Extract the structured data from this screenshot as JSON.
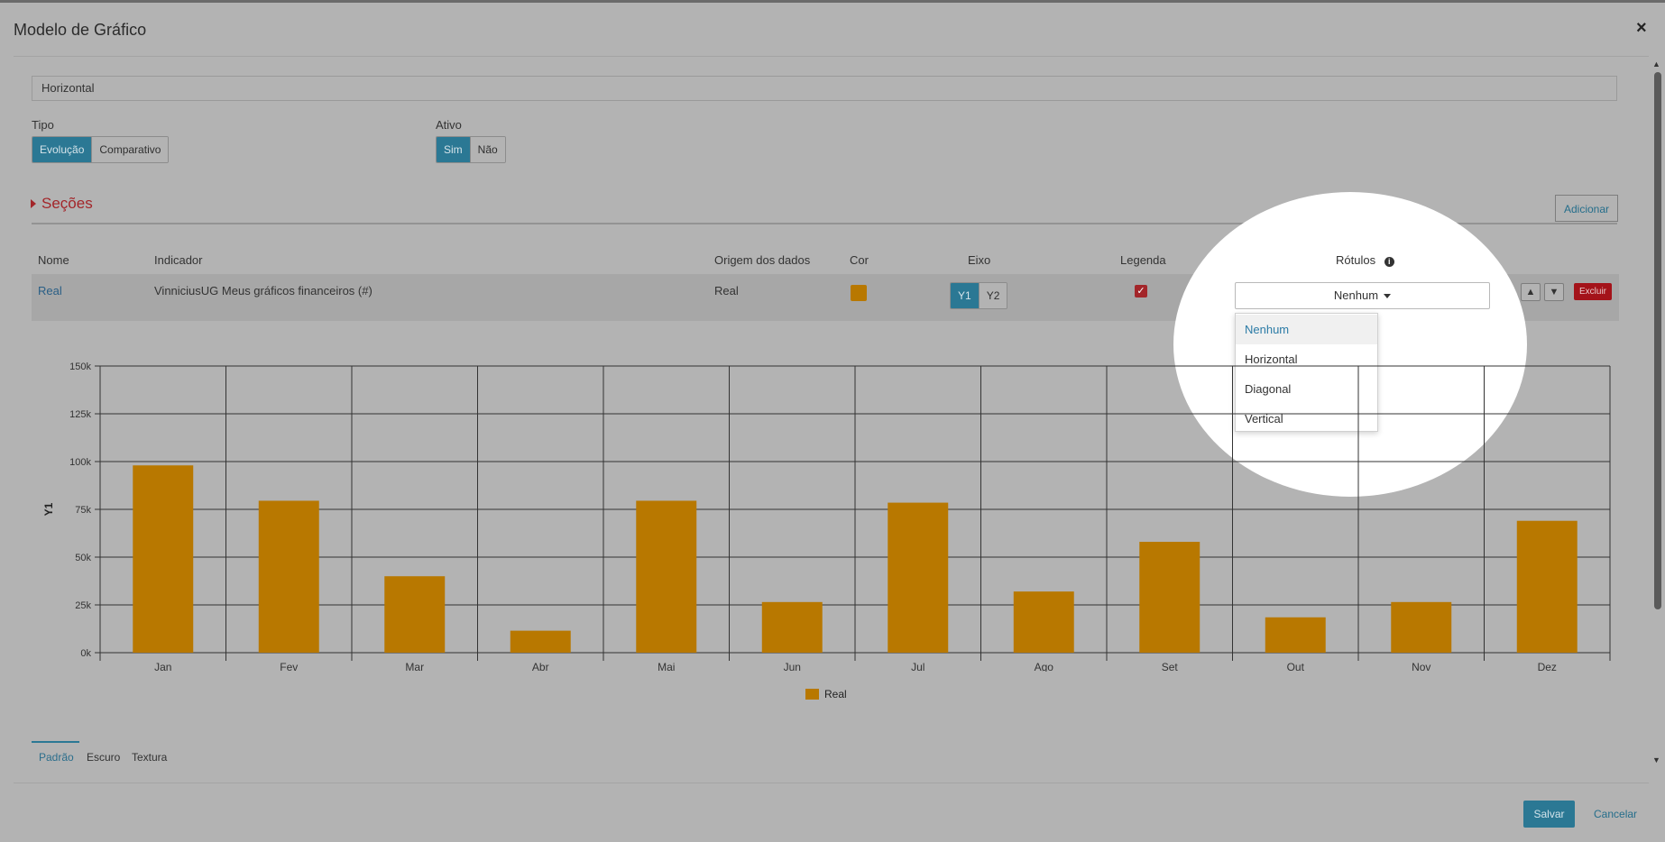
{
  "modal": {
    "title": "Modelo de Gráfico",
    "close_symbol": "×"
  },
  "form": {
    "name_value": "Horizontal",
    "tipo": {
      "label": "Tipo",
      "options": [
        "Evolução",
        "Comparativo"
      ],
      "selected": "Evolução"
    },
    "ativo": {
      "label": "Ativo",
      "options": [
        "Sim",
        "Não"
      ],
      "selected": "Sim"
    }
  },
  "secoes": {
    "label": "Seções",
    "add_label": "Adicionar",
    "columns": [
      "Nome",
      "Indicador",
      "Origem dos dados",
      "Cor",
      "Eixo",
      "Legenda",
      "Rótulos"
    ],
    "rows": [
      {
        "nome": "Real",
        "indicador": "VinniciusUG Meus gráficos financeiros (#)",
        "origem": "Real",
        "cor": "#b87800",
        "eixo_options": [
          "Y1",
          "Y2"
        ],
        "eixo_selected": "Y1",
        "legenda_checked": true,
        "rotulos": "Nenhum",
        "delete_label": "Excluir"
      }
    ]
  },
  "rotulos_dropdown": {
    "options": [
      "Nenhum",
      "Horizontal",
      "Diagonal",
      "Vertical"
    ],
    "selected": "Nenhum"
  },
  "chart_data": {
    "type": "bar",
    "categories": [
      "Jan",
      "Fev",
      "Mar",
      "Abr",
      "Mai",
      "Jun",
      "Jul",
      "Ago",
      "Set",
      "Out",
      "Nov",
      "Dez"
    ],
    "series": [
      {
        "name": "Real",
        "color": "#b87800",
        "values": [
          98000,
          79500,
          40000,
          11500,
          79500,
          26500,
          78500,
          32000,
          58000,
          18500,
          26500,
          69000
        ]
      }
    ],
    "ylabel": "Y1",
    "ylim": [
      0,
      150000
    ],
    "yticks": [
      {
        "value": 0,
        "label": "0k"
      },
      {
        "value": 25000,
        "label": "25k"
      },
      {
        "value": 50000,
        "label": "50k"
      },
      {
        "value": 75000,
        "label": "75k"
      },
      {
        "value": 100000,
        "label": "100k"
      },
      {
        "value": 125000,
        "label": "125k"
      },
      {
        "value": 150000,
        "label": "150k"
      }
    ],
    "grid": true,
    "legend_position": "bottom-center"
  },
  "theme_tabs": {
    "items": [
      "Padrão",
      "Escuro",
      "Textura"
    ],
    "selected": "Padrão"
  },
  "footer": {
    "save_label": "Salvar",
    "cancel_label": "Cancelar"
  }
}
